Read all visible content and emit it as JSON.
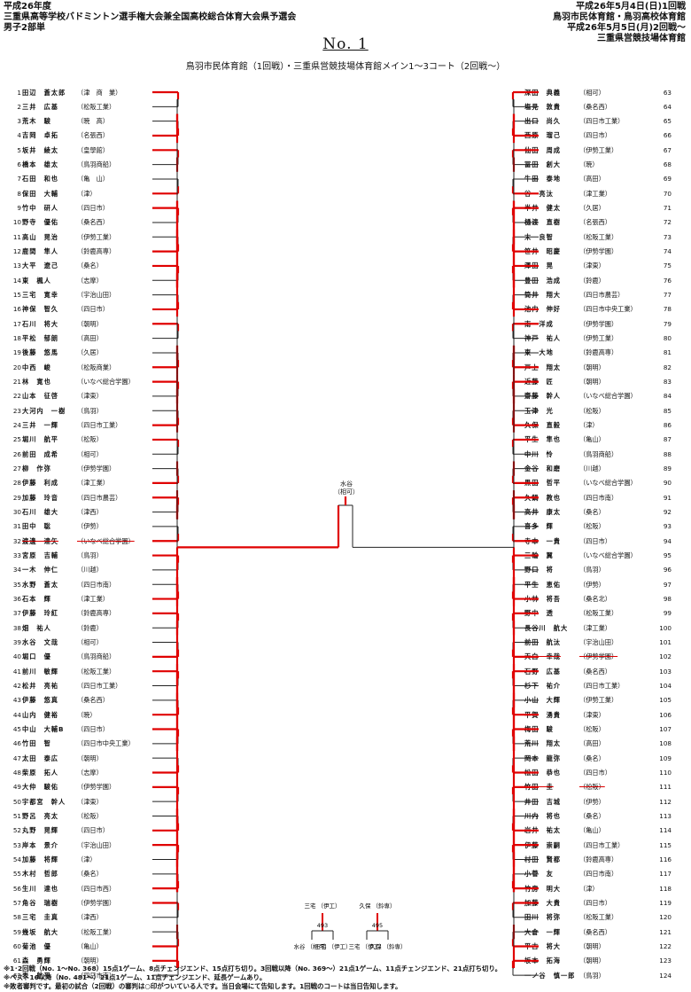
{
  "header_left": [
    "平成26年度",
    "三重県高等学校バドミントン選手権大会兼全国高校総合体育大会県予選会",
    "男子2部単"
  ],
  "header_right": [
    "平成26年5月4日(日)1回戦",
    "鳥羽市民体育館・鳥羽高校体育館",
    "平成26年5月5日(月)2回戦～",
    "三重県営競技場体育館"
  ],
  "page_title": "No. 1",
  "venue_line": "鳥羽市民体育館（1回戦）・三重県営競技場体育館メイン1～3コート（2回戦～）",
  "left_players": [
    {
      "no": "1",
      "name": "田辺　蒼太郎",
      "school": "（津　商　業）"
    },
    {
      "no": "2",
      "name": "三井　広基",
      "school": "（松阪工業）"
    },
    {
      "no": "3",
      "name": "荒木　駿",
      "school": "（暁　高）"
    },
    {
      "no": "4",
      "name": "吉岡　卓拓",
      "school": "（名張西）"
    },
    {
      "no": "5",
      "name": "坂井　綾太",
      "school": "（皇學館）"
    },
    {
      "no": "6",
      "name": "橋本　雄太",
      "school": "（鳥羽商船）"
    },
    {
      "no": "7",
      "name": "石田　和也",
      "school": "（亀　山）"
    },
    {
      "no": "8",
      "name": "保田　大輔",
      "school": "（津）"
    },
    {
      "no": "9",
      "name": "竹中　研人",
      "school": "（四日市）"
    },
    {
      "no": "10",
      "name": "野寺　優佑",
      "school": "（桑名西）"
    },
    {
      "no": "11",
      "name": "高山　晃治",
      "school": "（伊勢工業）"
    },
    {
      "no": "12",
      "name": "鹿間　隼人",
      "school": "（鈴鹿高専）"
    },
    {
      "no": "13",
      "name": "大平　遼己",
      "school": "（桑名）"
    },
    {
      "no": "14",
      "name": "東　楓人",
      "school": "（志摩）"
    },
    {
      "no": "15",
      "name": "三宅　寛幸",
      "school": "（宇治山田）"
    },
    {
      "no": "16",
      "name": "神保　智久",
      "school": "（四日市）"
    },
    {
      "no": "17",
      "name": "石川　将大",
      "school": "（朝明）"
    },
    {
      "no": "18",
      "name": "平松　郁朗",
      "school": "（高田）"
    },
    {
      "no": "19",
      "name": "後藤　悠馬",
      "school": "（久居）"
    },
    {
      "no": "20",
      "name": "中西　峻",
      "school": "（松阪商業）"
    },
    {
      "no": "21",
      "name": "林　寛也",
      "school": "（いなべ総合学園）"
    },
    {
      "no": "22",
      "name": "山本　征啓",
      "school": "（津東）"
    },
    {
      "no": "23",
      "name": "大河内　一樹",
      "school": "（鳥羽）"
    },
    {
      "no": "24",
      "name": "三井　一輝",
      "school": "（四日市工業）"
    },
    {
      "no": "25",
      "name": "堀川　航平",
      "school": "（松阪）"
    },
    {
      "no": "26",
      "name": "前田　成希",
      "school": "（相可）"
    },
    {
      "no": "27",
      "name": "柳　作弥",
      "school": "（伊勢学園）"
    },
    {
      "no": "28",
      "name": "伊藤　利成",
      "school": "（津工業）"
    },
    {
      "no": "29",
      "name": "加藤　玲音",
      "school": "（四日市農芸）"
    },
    {
      "no": "30",
      "name": "石川　雄大",
      "school": "（津西）"
    },
    {
      "no": "31",
      "name": "田中　聡",
      "school": "（伊勢）"
    },
    {
      "no": "32",
      "name": "渡邊　達矢",
      "school": "（いなべ総合学園）",
      "struck": true
    },
    {
      "no": "33",
      "name": "宮原　吉輔",
      "school": "（鳥羽）"
    },
    {
      "no": "34",
      "name": "一木　伸仁",
      "school": "（川越）"
    },
    {
      "no": "35",
      "name": "水野　蒼太",
      "school": "（四日市南）"
    },
    {
      "no": "36",
      "name": "石本　輝",
      "school": "（津工業）"
    },
    {
      "no": "37",
      "name": "伊藤　玲紅",
      "school": "（鈴鹿高専）"
    },
    {
      "no": "38",
      "name": "畑　祐人",
      "school": "（鈴鹿）"
    },
    {
      "no": "39",
      "name": "水谷　文哉",
      "school": "（相可）"
    },
    {
      "no": "40",
      "name": "堀口　優",
      "school": "（鳥羽商船）"
    },
    {
      "no": "41",
      "name": "前川　敏輝",
      "school": "（松阪工業）"
    },
    {
      "no": "42",
      "name": "松井　亮祐",
      "school": "（四日市工業）"
    },
    {
      "no": "43",
      "name": "伊藤　悠真",
      "school": "（桑名西）"
    },
    {
      "no": "44",
      "name": "山内　健裕",
      "school": "（暁）"
    },
    {
      "no": "45",
      "name": "中山　大輔B",
      "school": "（四日市）"
    },
    {
      "no": "46",
      "name": "竹田　智",
      "school": "（四日市中央工業）"
    },
    {
      "no": "47",
      "name": "太田　泰広",
      "school": "（朝明）"
    },
    {
      "no": "48",
      "name": "柴原　拓人",
      "school": "（志摩）"
    },
    {
      "no": "49",
      "name": "大仲　駿佑",
      "school": "（伊勢学園）"
    },
    {
      "no": "50",
      "name": "宇都宮　幹人",
      "school": "（津東）"
    },
    {
      "no": "51",
      "name": "野呂　亮太",
      "school": "（松阪）"
    },
    {
      "no": "52",
      "name": "丸野　晃輝",
      "school": "（四日市）"
    },
    {
      "no": "53",
      "name": "岸本　景介",
      "school": "（宇治山田）"
    },
    {
      "no": "54",
      "name": "加藤　将輝",
      "school": "（津）"
    },
    {
      "no": "55",
      "name": "木村　哲郎",
      "school": "（桑名）"
    },
    {
      "no": "56",
      "name": "生川　達也",
      "school": "（四日市西）"
    },
    {
      "no": "57",
      "name": "角谷　瑞樹",
      "school": "（伊勢学園）"
    },
    {
      "no": "58",
      "name": "三宅　圭真",
      "school": "（津西）"
    },
    {
      "no": "59",
      "name": "幾坂　航大",
      "school": "（松阪工業）"
    },
    {
      "no": "60",
      "name": "菊池　優",
      "school": "（亀山）"
    },
    {
      "no": "61",
      "name": "森　勇輝",
      "school": "（朝明）"
    },
    {
      "no": "62",
      "name": "表　航平",
      "school": "（四日市南）"
    }
  ],
  "right_players": [
    {
      "no": "63",
      "name": "深田　典義",
      "school": "（相可）"
    },
    {
      "no": "64",
      "name": "塩見　敦貴",
      "school": "（桑名西）"
    },
    {
      "no": "65",
      "name": "出口　尚久",
      "school": "（四日市工業）"
    },
    {
      "no": "66",
      "name": "西原　瑠己",
      "school": "（四日市）"
    },
    {
      "no": "67",
      "name": "仙田　周成",
      "school": "（伊勢工業）"
    },
    {
      "no": "68",
      "name": "冨田　創大",
      "school": "（暁）"
    },
    {
      "no": "69",
      "name": "牛田　泰地",
      "school": "（高田）"
    },
    {
      "no": "70",
      "name": "谷　亮汰",
      "school": "（津工業）"
    },
    {
      "no": "71",
      "name": "半井　健太",
      "school": "（久居）"
    },
    {
      "no": "72",
      "name": "樋渡　直樹",
      "school": "（名張西）"
    },
    {
      "no": "73",
      "name": "末　良智",
      "school": "（松阪工業）"
    },
    {
      "no": "74",
      "name": "笹井　昭慶",
      "school": "（伊勢学園）"
    },
    {
      "no": "75",
      "name": "澤田　晃",
      "school": "（津東）"
    },
    {
      "no": "76",
      "name": "豊田　浩成",
      "school": "（鈴鹿）"
    },
    {
      "no": "77",
      "name": "筒井　翔大",
      "school": "（四日市農芸）"
    },
    {
      "no": "78",
      "name": "池内　伸好",
      "school": "（四日市中央工業）"
    },
    {
      "no": "79",
      "name": "南　洋成",
      "school": "（伊勢学園）"
    },
    {
      "no": "80",
      "name": "神戸　祐人",
      "school": "（伊勢工業）"
    },
    {
      "no": "81",
      "name": "東　大地",
      "school": "（鈴鹿高専）"
    },
    {
      "no": "82",
      "name": "戸上　翔太",
      "school": "（朝明）"
    },
    {
      "no": "83",
      "name": "近藤　匠",
      "school": "（朝明）"
    },
    {
      "no": "84",
      "name": "齋藤　幹人",
      "school": "（いなべ総合学園）"
    },
    {
      "no": "85",
      "name": "玉津　光",
      "school": "（松阪）"
    },
    {
      "no": "86",
      "name": "久保　直毅",
      "school": "（津）"
    },
    {
      "no": "87",
      "name": "平生　隼也",
      "school": "（亀山）"
    },
    {
      "no": "88",
      "name": "中川　怜",
      "school": "（鳥羽商船）"
    },
    {
      "no": "89",
      "name": "金谷　和磨",
      "school": "（川越）"
    },
    {
      "no": "90",
      "name": "黒田　哲平",
      "school": "（いなべ総合学園）"
    },
    {
      "no": "91",
      "name": "久鍋　教也",
      "school": "（四日市南）"
    },
    {
      "no": "92",
      "name": "高井　康太",
      "school": "（桑名）"
    },
    {
      "no": "93",
      "name": "喜多　輝",
      "school": "（松阪）"
    },
    {
      "no": "94",
      "name": "寺本　一貴",
      "school": "（四日市）"
    },
    {
      "no": "95",
      "name": "三輪　翼",
      "school": "（いなべ総合学園）"
    },
    {
      "no": "96",
      "name": "野口　将",
      "school": "（鳥羽）"
    },
    {
      "no": "97",
      "name": "平生　恵佑",
      "school": "（伊勢）"
    },
    {
      "no": "98",
      "name": "小林　将吾",
      "school": "（桑名北）"
    },
    {
      "no": "99",
      "name": "野中　透",
      "school": "（松阪工業）"
    },
    {
      "no": "100",
      "name": "長谷川　航大",
      "school": "（津工業）"
    },
    {
      "no": "101",
      "name": "前田　航汰",
      "school": "（宇治山田）"
    },
    {
      "no": "102",
      "name": "天白　幸哉",
      "school": "（伊勢学園）",
      "struck": true
    },
    {
      "no": "103",
      "name": "石野　広基",
      "school": "（桑名西）"
    },
    {
      "no": "104",
      "name": "杉下　祐介",
      "school": "（四日市工業）"
    },
    {
      "no": "105",
      "name": "小山　大輝",
      "school": "（伊勢工業）"
    },
    {
      "no": "106",
      "name": "平賀　湧貴",
      "school": "（津東）"
    },
    {
      "no": "107",
      "name": "梅田　駿",
      "school": "（松阪）"
    },
    {
      "no": "108",
      "name": "荒川　翔太",
      "school": "（高田）"
    },
    {
      "no": "109",
      "name": "岡本　龍弥",
      "school": "（桑名）"
    },
    {
      "no": "110",
      "name": "松田　恭也",
      "school": "（四日市）"
    },
    {
      "no": "111",
      "name": "竹田　圭",
      "school": "（松阪）",
      "struck": true
    },
    {
      "no": "112",
      "name": "井田　吉城",
      "school": "（伊勢）"
    },
    {
      "no": "113",
      "name": "川内　将也",
      "school": "（桑名）"
    },
    {
      "no": "114",
      "name": "岩井　祐太",
      "school": "（亀山）"
    },
    {
      "no": "115",
      "name": "伊藤　崇嗣",
      "school": "（四日市工業）"
    },
    {
      "no": "116",
      "name": "村田　賢都",
      "school": "（鈴鹿高専）"
    },
    {
      "no": "117",
      "name": "小菅　友",
      "school": "（四日市南）"
    },
    {
      "no": "118",
      "name": "竹房　明大",
      "school": "（津）"
    },
    {
      "no": "119",
      "name": "加藤　大貴",
      "school": "（四日市）"
    },
    {
      "no": "120",
      "name": "田川　将弥",
      "school": "（松阪工業）"
    },
    {
      "no": "121",
      "name": "大倉　一輝",
      "school": "（桑名西）"
    },
    {
      "no": "122",
      "name": "平古　将大",
      "school": "（朝明）"
    },
    {
      "no": "123",
      "name": "坂本　拓海",
      "school": "（朝明）"
    },
    {
      "no": "124",
      "name": "一ノ谷　慎一郎",
      "school": "（鳥羽）"
    }
  ],
  "final_label": {
    "name": "水谷",
    "school": "（相可）"
  },
  "mini_bracket": {
    "a": {
      "top": "三宅\n（伊工）",
      "left": "水谷\n（相可）",
      "right": "三宅\n（伊工）",
      "match": "493"
    },
    "b": {
      "top": "久保\n（鈴専）",
      "left": "三宅\n（伊工）",
      "right": "久保\n（鈴専）",
      "match": "495"
    }
  },
  "footnotes": [
    "※1･2回戦（No. 1～No. 368）15点1ゲーム、8点チェンジエンド、15点打ち切り。3回戦以降（No. 369～）21点1ゲーム、11点チェンジエンド、21点打ち切り。",
    "※ベスト16以降（No. 481～）21点1ゲーム、11点チェンジエンド、延長ゲームあり。",
    "※敗者審判です。最初の試合（2回戦）の審判は○印がついている人です。当日会場にて告知します。1回戦のコートは当日告知します。"
  ],
  "accent_color": "#e00000"
}
